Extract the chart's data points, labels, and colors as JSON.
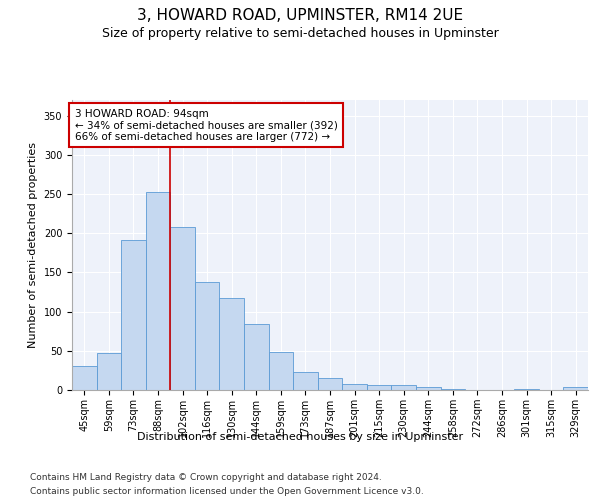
{
  "title": "3, HOWARD ROAD, UPMINSTER, RM14 2UE",
  "subtitle": "Size of property relative to semi-detached houses in Upminster",
  "xlabel": "Distribution of semi-detached houses by size in Upminster",
  "ylabel": "Number of semi-detached properties",
  "categories": [
    "45sqm",
    "59sqm",
    "73sqm",
    "88sqm",
    "102sqm",
    "116sqm",
    "130sqm",
    "144sqm",
    "159sqm",
    "173sqm",
    "187sqm",
    "201sqm",
    "215sqm",
    "230sqm",
    "244sqm",
    "258sqm",
    "272sqm",
    "286sqm",
    "301sqm",
    "315sqm",
    "329sqm"
  ],
  "values": [
    30,
    47,
    191,
    253,
    208,
    138,
    117,
    84,
    48,
    23,
    15,
    8,
    6,
    6,
    4,
    1,
    0,
    0,
    1,
    0,
    4
  ],
  "bar_color": "#c5d8f0",
  "bar_edge_color": "#5b9bd5",
  "vline_x": 3.5,
  "vline_color": "#cc0000",
  "annotation_text": "3 HOWARD ROAD: 94sqm\n← 34% of semi-detached houses are smaller (392)\n66% of semi-detached houses are larger (772) →",
  "annotation_box_color": "#ffffff",
  "annotation_box_edge_color": "#cc0000",
  "ylim": [
    0,
    370
  ],
  "yticks": [
    0,
    50,
    100,
    150,
    200,
    250,
    300,
    350
  ],
  "footer_line1": "Contains HM Land Registry data © Crown copyright and database right 2024.",
  "footer_line2": "Contains public sector information licensed under the Open Government Licence v3.0.",
  "background_color": "#eef2fa",
  "grid_color": "#ffffff",
  "title_fontsize": 11,
  "subtitle_fontsize": 9,
  "axis_label_fontsize": 8,
  "tick_fontsize": 7,
  "annotation_fontsize": 7.5,
  "footer_fontsize": 6.5
}
